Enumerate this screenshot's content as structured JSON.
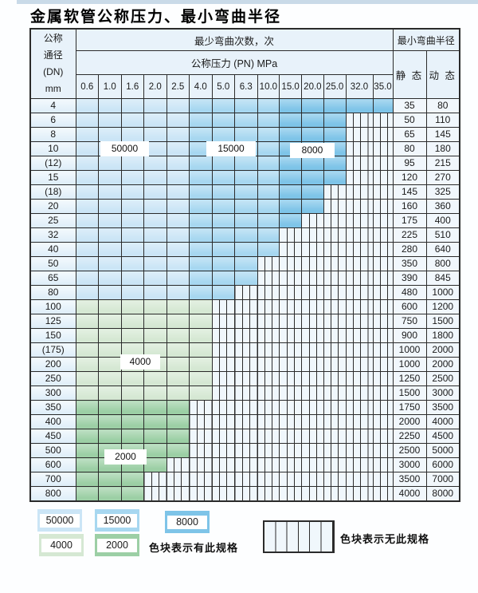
{
  "title": "金属软管公称压力、最小弯曲半径",
  "colors": {
    "cycles_50000": "#cbe5f6",
    "cycles_15000": "#a7d7f0",
    "cycles_8000": "#7ec4e8",
    "cycles_4000": "#d5e8d3",
    "cycles_2000": "#9ccfa5",
    "no_spec_bg": "#f0f7fc",
    "grid_line": "#2b2b2b",
    "header_bg": "#e8f2fa",
    "top_strip": "#c9dae8"
  },
  "table": {
    "dn_header_lines": [
      "公称",
      "通径",
      "(DN)",
      "mm"
    ],
    "bend_cycles_header": "最少弯曲次数，次",
    "pressure_header": "公称压力 (PN) MPa",
    "radius_header": "最小弯曲半径",
    "static_header": "静 态",
    "dynamic_header": "动 态",
    "pressure_columns": [
      "0.6",
      "1.0",
      "1.6",
      "2.0",
      "2.5",
      "4.0",
      "5.0",
      "6.3",
      "10.0",
      "15.0",
      "20.0",
      "25.0",
      "32.0",
      "35.0"
    ],
    "rows": [
      {
        "dn": "4",
        "cells": [
          "50000",
          "50000",
          "50000",
          "50000",
          "50000",
          "15000",
          "15000",
          "15000",
          "15000",
          "8000",
          "8000",
          "8000",
          "8000",
          "8000"
        ],
        "static": "35",
        "dynamic": "80"
      },
      {
        "dn": "6",
        "cells": [
          "50000",
          "50000",
          "50000",
          "50000",
          "50000",
          "15000",
          "15000",
          "15000",
          "15000",
          "8000",
          "8000",
          "8000",
          "none",
          "none"
        ],
        "static": "50",
        "dynamic": "110"
      },
      {
        "dn": "8",
        "cells": [
          "50000",
          "50000",
          "50000",
          "50000",
          "50000",
          "15000",
          "15000",
          "15000",
          "15000",
          "8000",
          "8000",
          "8000",
          "none",
          "none"
        ],
        "static": "65",
        "dynamic": "145"
      },
      {
        "dn": "10",
        "cells": [
          "50000",
          "50000",
          "50000",
          "50000",
          "50000",
          "15000",
          "15000",
          "15000",
          "15000",
          "8000",
          "8000",
          "8000",
          "none",
          "none"
        ],
        "static": "80",
        "dynamic": "180"
      },
      {
        "dn": "(12)",
        "cells": [
          "50000",
          "50000",
          "50000",
          "50000",
          "50000",
          "15000",
          "15000",
          "15000",
          "15000",
          "8000",
          "8000",
          "8000",
          "none",
          "none"
        ],
        "static": "95",
        "dynamic": "215"
      },
      {
        "dn": "15",
        "cells": [
          "50000",
          "50000",
          "50000",
          "50000",
          "50000",
          "15000",
          "15000",
          "15000",
          "15000",
          "8000",
          "8000",
          "8000",
          "none",
          "none"
        ],
        "static": "120",
        "dynamic": "270"
      },
      {
        "dn": "(18)",
        "cells": [
          "50000",
          "50000",
          "50000",
          "50000",
          "50000",
          "15000",
          "15000",
          "15000",
          "15000",
          "8000",
          "8000",
          "none",
          "none",
          "none"
        ],
        "static": "145",
        "dynamic": "325"
      },
      {
        "dn": "20",
        "cells": [
          "50000",
          "50000",
          "50000",
          "50000",
          "50000",
          "15000",
          "15000",
          "15000",
          "15000",
          "8000",
          "8000",
          "none",
          "none",
          "none"
        ],
        "static": "160",
        "dynamic": "360"
      },
      {
        "dn": "25",
        "cells": [
          "50000",
          "50000",
          "50000",
          "50000",
          "50000",
          "15000",
          "15000",
          "15000",
          "15000",
          "8000",
          "none",
          "none",
          "none",
          "none"
        ],
        "static": "175",
        "dynamic": "400"
      },
      {
        "dn": "32",
        "cells": [
          "50000",
          "50000",
          "50000",
          "50000",
          "50000",
          "15000",
          "15000",
          "15000",
          "15000",
          "none",
          "none",
          "none",
          "none",
          "none"
        ],
        "static": "225",
        "dynamic": "510"
      },
      {
        "dn": "40",
        "cells": [
          "50000",
          "50000",
          "50000",
          "50000",
          "50000",
          "15000",
          "15000",
          "15000",
          "15000",
          "none",
          "none",
          "none",
          "none",
          "none"
        ],
        "static": "280",
        "dynamic": "640"
      },
      {
        "dn": "50",
        "cells": [
          "50000",
          "50000",
          "50000",
          "50000",
          "50000",
          "15000",
          "15000",
          "15000",
          "none",
          "none",
          "none",
          "none",
          "none",
          "none"
        ],
        "static": "350",
        "dynamic": "800"
      },
      {
        "dn": "65",
        "cells": [
          "50000",
          "50000",
          "50000",
          "50000",
          "50000",
          "15000",
          "15000",
          "15000",
          "none",
          "none",
          "none",
          "none",
          "none",
          "none"
        ],
        "static": "390",
        "dynamic": "845"
      },
      {
        "dn": "80",
        "cells": [
          "50000",
          "50000",
          "50000",
          "50000",
          "50000",
          "15000",
          "15000",
          "none",
          "none",
          "none",
          "none",
          "none",
          "none",
          "none"
        ],
        "static": "480",
        "dynamic": "1000"
      },
      {
        "dn": "100",
        "cells": [
          "4000",
          "4000",
          "4000",
          "4000",
          "4000",
          "4000",
          "none",
          "none",
          "none",
          "none",
          "none",
          "none",
          "none",
          "none"
        ],
        "static": "600",
        "dynamic": "1200"
      },
      {
        "dn": "125",
        "cells": [
          "4000",
          "4000",
          "4000",
          "4000",
          "4000",
          "4000",
          "none",
          "none",
          "none",
          "none",
          "none",
          "none",
          "none",
          "none"
        ],
        "static": "750",
        "dynamic": "1500"
      },
      {
        "dn": "150",
        "cells": [
          "4000",
          "4000",
          "4000",
          "4000",
          "4000",
          "4000",
          "none",
          "none",
          "none",
          "none",
          "none",
          "none",
          "none",
          "none"
        ],
        "static": "900",
        "dynamic": "1800"
      },
      {
        "dn": "(175)",
        "cells": [
          "4000",
          "4000",
          "4000",
          "4000",
          "4000",
          "4000",
          "none",
          "none",
          "none",
          "none",
          "none",
          "none",
          "none",
          "none"
        ],
        "static": "1000",
        "dynamic": "2000"
      },
      {
        "dn": "200",
        "cells": [
          "4000",
          "4000",
          "4000",
          "4000",
          "4000",
          "4000",
          "none",
          "none",
          "none",
          "none",
          "none",
          "none",
          "none",
          "none"
        ],
        "static": "1000",
        "dynamic": "2000"
      },
      {
        "dn": "250",
        "cells": [
          "4000",
          "4000",
          "4000",
          "4000",
          "4000",
          "4000",
          "none",
          "none",
          "none",
          "none",
          "none",
          "none",
          "none",
          "none"
        ],
        "static": "1250",
        "dynamic": "2500"
      },
      {
        "dn": "300",
        "cells": [
          "4000",
          "4000",
          "4000",
          "4000",
          "4000",
          "4000",
          "none",
          "none",
          "none",
          "none",
          "none",
          "none",
          "none",
          "none"
        ],
        "static": "1500",
        "dynamic": "3000"
      },
      {
        "dn": "350",
        "cells": [
          "2000",
          "2000",
          "2000",
          "2000",
          "2000",
          "none",
          "none",
          "none",
          "none",
          "none",
          "none",
          "none",
          "none",
          "none"
        ],
        "static": "1750",
        "dynamic": "3500"
      },
      {
        "dn": "400",
        "cells": [
          "2000",
          "2000",
          "2000",
          "2000",
          "2000",
          "none",
          "none",
          "none",
          "none",
          "none",
          "none",
          "none",
          "none",
          "none"
        ],
        "static": "2000",
        "dynamic": "4000"
      },
      {
        "dn": "450",
        "cells": [
          "2000",
          "2000",
          "2000",
          "2000",
          "2000",
          "none",
          "none",
          "none",
          "none",
          "none",
          "none",
          "none",
          "none",
          "none"
        ],
        "static": "2250",
        "dynamic": "4500"
      },
      {
        "dn": "500",
        "cells": [
          "2000",
          "2000",
          "2000",
          "2000",
          "2000",
          "none",
          "none",
          "none",
          "none",
          "none",
          "none",
          "none",
          "none",
          "none"
        ],
        "static": "2500",
        "dynamic": "5000"
      },
      {
        "dn": "600",
        "cells": [
          "2000",
          "2000",
          "2000",
          "2000",
          "none",
          "none",
          "none",
          "none",
          "none",
          "none",
          "none",
          "none",
          "none",
          "none"
        ],
        "static": "3000",
        "dynamic": "6000"
      },
      {
        "dn": "700",
        "cells": [
          "2000",
          "2000",
          "2000",
          "none",
          "none",
          "none",
          "none",
          "none",
          "none",
          "none",
          "none",
          "none",
          "none",
          "none"
        ],
        "static": "3500",
        "dynamic": "7000"
      },
      {
        "dn": "800",
        "cells": [
          "2000",
          "2000",
          "2000",
          "none",
          "none",
          "none",
          "none",
          "none",
          "none",
          "none",
          "none",
          "none",
          "none",
          "none"
        ],
        "static": "4000",
        "dynamic": "8000"
      }
    ]
  },
  "overlay_labels": {
    "b50000": "50000",
    "b15000": "15000",
    "b8000": "8000",
    "b4000": "4000",
    "b2000": "2000"
  },
  "legend": {
    "items": [
      {
        "label": "50000"
      },
      {
        "label": "15000"
      },
      {
        "label": "8000"
      },
      {
        "label": "4000"
      },
      {
        "label": "2000"
      }
    ],
    "has_spec_caption": "色块表示有此规格",
    "no_spec_caption": "色块表示无此规格"
  }
}
